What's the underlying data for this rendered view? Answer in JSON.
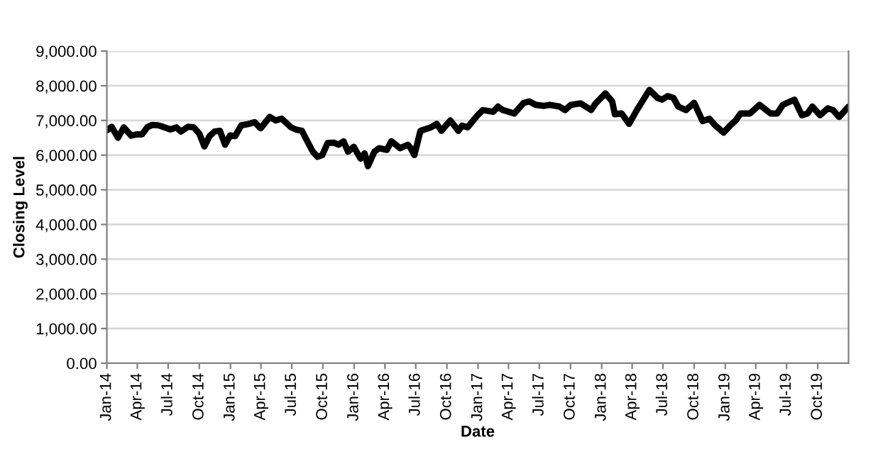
{
  "chart_data": {
    "type": "line",
    "xlabel": "Date",
    "ylabel": "Closing Level",
    "x": [
      "2014-01-02",
      "2014-01-15",
      "2014-02-03",
      "2014-02-20",
      "2014-03-14",
      "2014-03-31",
      "2014-04-15",
      "2014-05-01",
      "2014-05-15",
      "2014-06-02",
      "2014-06-20",
      "2014-07-08",
      "2014-07-25",
      "2014-08-08",
      "2014-08-29",
      "2014-09-15",
      "2014-10-01",
      "2014-10-16",
      "2014-10-31",
      "2014-11-15",
      "2014-12-01",
      "2014-12-16",
      "2014-12-31",
      "2015-01-15",
      "2015-02-02",
      "2015-02-20",
      "2015-03-13",
      "2015-03-31",
      "2015-04-27",
      "2015-05-15",
      "2015-06-01",
      "2015-06-29",
      "2015-07-15",
      "2015-07-31",
      "2015-08-24",
      "2015-09-01",
      "2015-09-15",
      "2015-09-29",
      "2015-10-15",
      "2015-11-02",
      "2015-11-16",
      "2015-12-01",
      "2015-12-14",
      "2015-12-31",
      "2016-01-20",
      "2016-02-01",
      "2016-02-11",
      "2016-03-01",
      "2016-03-15",
      "2016-04-07",
      "2016-04-20",
      "2016-05-16",
      "2016-06-08",
      "2016-06-16",
      "2016-06-27",
      "2016-07-15",
      "2016-08-15",
      "2016-09-01",
      "2016-09-15",
      "2016-10-11",
      "2016-11-04",
      "2016-11-15",
      "2016-12-01",
      "2016-12-30",
      "2017-01-15",
      "2017-02-15",
      "2017-03-01",
      "2017-03-15",
      "2017-04-18",
      "2017-05-15",
      "2017-06-01",
      "2017-06-20",
      "2017-07-15",
      "2017-08-01",
      "2017-08-29",
      "2017-09-15",
      "2017-10-02",
      "2017-10-31",
      "2017-11-15",
      "2017-12-01",
      "2017-12-15",
      "2018-01-12",
      "2018-02-01",
      "2018-02-09",
      "2018-03-01",
      "2018-03-23",
      "2018-04-15",
      "2018-05-22",
      "2018-06-15",
      "2018-06-28",
      "2018-07-15",
      "2018-08-01",
      "2018-08-15",
      "2018-09-07",
      "2018-10-01",
      "2018-10-26",
      "2018-11-15",
      "2018-12-03",
      "2018-12-27",
      "2019-01-15",
      "2019-02-01",
      "2019-02-15",
      "2019-03-15",
      "2019-04-12",
      "2019-05-15",
      "2019-06-03",
      "2019-06-20",
      "2019-07-24",
      "2019-08-15",
      "2019-09-01",
      "2019-09-15",
      "2019-10-08",
      "2019-10-31",
      "2019-11-15",
      "2019-12-03",
      "2019-12-31"
    ],
    "values": [
      6717,
      6820,
      6500,
      6800,
      6560,
      6598,
      6600,
      6810,
      6870,
      6860,
      6800,
      6740,
      6800,
      6680,
      6820,
      6800,
      6620,
      6250,
      6546,
      6680,
      6700,
      6300,
      6566,
      6550,
      6860,
      6890,
      6950,
      6773,
      7100,
      7000,
      7050,
      6800,
      6730,
      6700,
      6250,
      6100,
      5950,
      6000,
      6350,
      6360,
      6300,
      6400,
      6100,
      6242,
      5900,
      6050,
      5680,
      6100,
      6200,
      6150,
      6400,
      6200,
      6300,
      6200,
      6000,
      6700,
      6800,
      6900,
      6700,
      7000,
      6700,
      6850,
      6800,
      7143,
      7300,
      7250,
      7400,
      7300,
      7200,
      7500,
      7550,
      7450,
      7420,
      7450,
      7400,
      7300,
      7450,
      7493,
      7400,
      7300,
      7500,
      7780,
      7550,
      7180,
      7200,
      6900,
      7300,
      7880,
      7650,
      7600,
      7700,
      7650,
      7400,
      7300,
      7510,
      6980,
      7050,
      6850,
      6650,
      6850,
      7000,
      7200,
      7200,
      7450,
      7200,
      7200,
      7450,
      7600,
      7150,
      7200,
      7400,
      7150,
      7350,
      7300,
      7100,
      7400
    ],
    "color": "#000000",
    "line_style": "solid",
    "marker": "none",
    "grid": "y",
    "legend": false,
    "xlim": [
      "2014-01-01",
      "2019-12-31"
    ],
    "xticks": [
      {
        "value": "2014-01-01",
        "label": "Jan-14"
      },
      {
        "value": "2014-04-01",
        "label": "Apr-14"
      },
      {
        "value": "2014-07-01",
        "label": "Jul-14"
      },
      {
        "value": "2014-10-01",
        "label": "Oct-14"
      },
      {
        "value": "2015-01-01",
        "label": "Jan-15"
      },
      {
        "value": "2015-04-01",
        "label": "Apr-15"
      },
      {
        "value": "2015-07-01",
        "label": "Jul-15"
      },
      {
        "value": "2015-10-01",
        "label": "Oct-15"
      },
      {
        "value": "2016-01-01",
        "label": "Jan-16"
      },
      {
        "value": "2016-04-01",
        "label": "Apr-16"
      },
      {
        "value": "2016-07-01",
        "label": "Jul-16"
      },
      {
        "value": "2016-10-01",
        "label": "Oct-16"
      },
      {
        "value": "2017-01-01",
        "label": "Jan-17"
      },
      {
        "value": "2017-04-01",
        "label": "Apr-17"
      },
      {
        "value": "2017-07-01",
        "label": "Jul-17"
      },
      {
        "value": "2017-10-01",
        "label": "Oct-17"
      },
      {
        "value": "2018-01-01",
        "label": "Jan-18"
      },
      {
        "value": "2018-04-01",
        "label": "Apr-18"
      },
      {
        "value": "2018-07-01",
        "label": "Jul-18"
      },
      {
        "value": "2018-10-01",
        "label": "Oct-18"
      },
      {
        "value": "2019-01-01",
        "label": "Jan-19"
      },
      {
        "value": "2019-04-01",
        "label": "Apr-19"
      },
      {
        "value": "2019-07-01",
        "label": "Jul-19"
      },
      {
        "value": "2019-10-01",
        "label": "Oct-19"
      }
    ],
    "ylim": [
      0,
      9000
    ],
    "yticks": [
      {
        "value": 0,
        "label": "0.00"
      },
      {
        "value": 1000,
        "label": "1,000.00"
      },
      {
        "value": 2000,
        "label": "2,000.00"
      },
      {
        "value": 3000,
        "label": "3,000.00"
      },
      {
        "value": 4000,
        "label": "4,000.00"
      },
      {
        "value": 5000,
        "label": "5,000.00"
      },
      {
        "value": 6000,
        "label": "6,000.00"
      },
      {
        "value": 7000,
        "label": "7,000.00"
      },
      {
        "value": 8000,
        "label": "8,000.00"
      },
      {
        "value": 9000,
        "label": "9,000.00"
      }
    ]
  }
}
